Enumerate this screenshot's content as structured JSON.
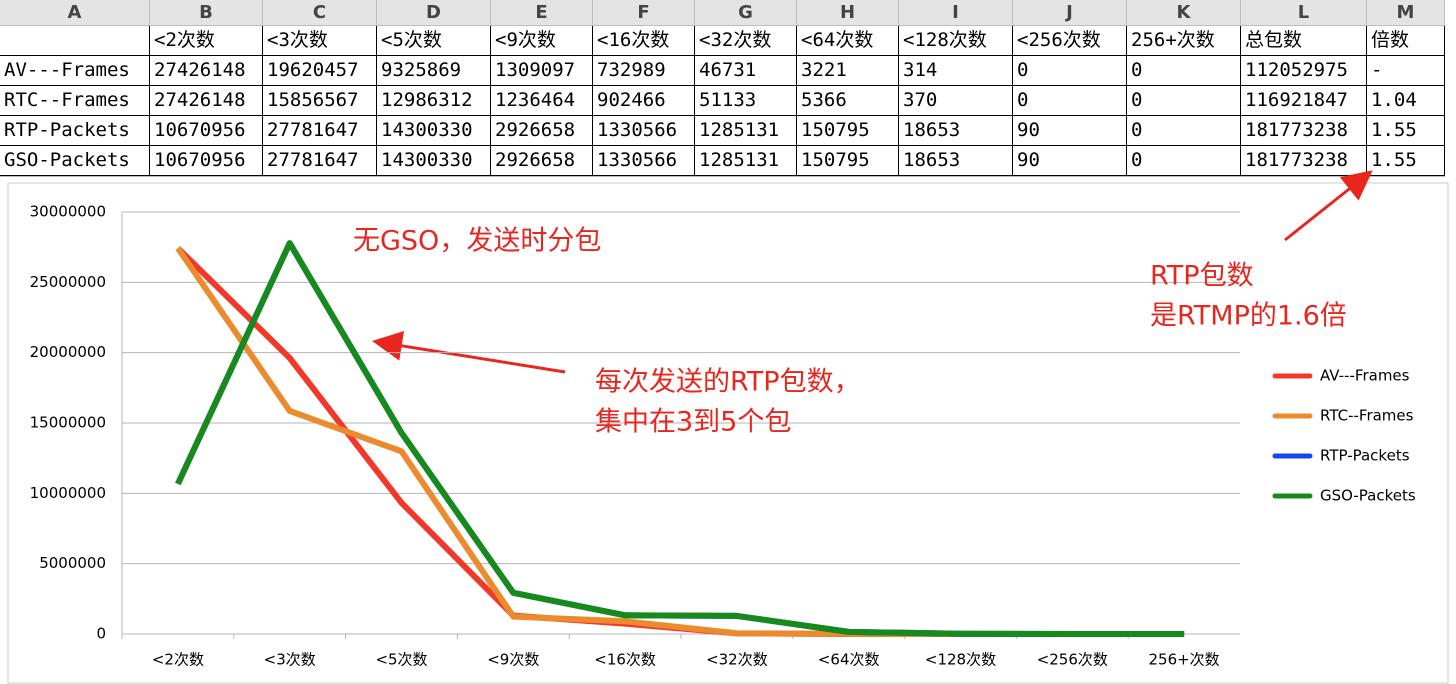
{
  "spreadsheet": {
    "columns": [
      "A",
      "B",
      "C",
      "D",
      "E",
      "F",
      "G",
      "H",
      "I",
      "J",
      "K",
      "L",
      "M"
    ],
    "header_row": [
      "<2次数",
      "<3次数",
      "<5次数",
      "<9次数",
      "<16次数",
      "<32次数",
      "<64次数",
      "<128次数",
      "<256次数",
      "256+次数",
      "总包数",
      "倍数"
    ],
    "rows": [
      [
        "AV---Frames",
        "27426148",
        "19620457",
        "9325869",
        "1309097",
        "732989",
        "46731",
        "3221",
        "314",
        "0",
        "0",
        "112052975",
        "-"
      ],
      [
        "RTC--Frames",
        "27426148",
        "15856567",
        "12986312",
        "1236464",
        "902466",
        "51133",
        "5366",
        "370",
        "0",
        "0",
        "116921847",
        "1.04"
      ],
      [
        "RTP-Packets",
        "10670956",
        "27781647",
        "14300330",
        "2926658",
        "1330566",
        "1285131",
        "150795",
        "18653",
        "90",
        "0",
        "181773238",
        "1.55"
      ],
      [
        "GSO-Packets",
        "10670956",
        "27781647",
        "14300330",
        "2926658",
        "1330566",
        "1285131",
        "150795",
        "18653",
        "90",
        "0",
        "181773238",
        "1.55"
      ]
    ]
  },
  "chart_data": {
    "type": "line",
    "categories": [
      "<2次数",
      "<3次数",
      "<5次数",
      "<9次数",
      "<16次数",
      "<32次数",
      "<64次数",
      "<128次数",
      "<256次数",
      "256+次数"
    ],
    "series": [
      {
        "name": "AV---Frames",
        "color": "#f2382a",
        "values": [
          27426148,
          19620457,
          9325869,
          1309097,
          732989,
          46731,
          3221,
          314,
          0,
          0
        ]
      },
      {
        "name": "RTC--Frames",
        "color": "#ec8a2e",
        "values": [
          27426148,
          15856567,
          12986312,
          1236464,
          902466,
          51133,
          5366,
          370,
          0,
          0
        ]
      },
      {
        "name": "RTP-Packets",
        "color": "#1646f0",
        "values": [
          10670956,
          27781647,
          14300330,
          2926658,
          1330566,
          1285131,
          150795,
          18653,
          90,
          0
        ]
      },
      {
        "name": "GSO-Packets",
        "color": "#178a1c",
        "values": [
          10670956,
          27781647,
          14300330,
          2926658,
          1330566,
          1285131,
          150795,
          18653,
          90,
          0
        ]
      }
    ],
    "ylim": [
      0,
      30000000
    ],
    "yticks": [
      0,
      5000000,
      10000000,
      15000000,
      20000000,
      25000000,
      30000000
    ],
    "grid": true,
    "legend": "right",
    "annotations": [
      "无GSO，发送时分包",
      "每次发送的RTP包数，",
      "集中在3到5个包",
      "RTP包数",
      "是RTMP的1.6倍"
    ]
  }
}
